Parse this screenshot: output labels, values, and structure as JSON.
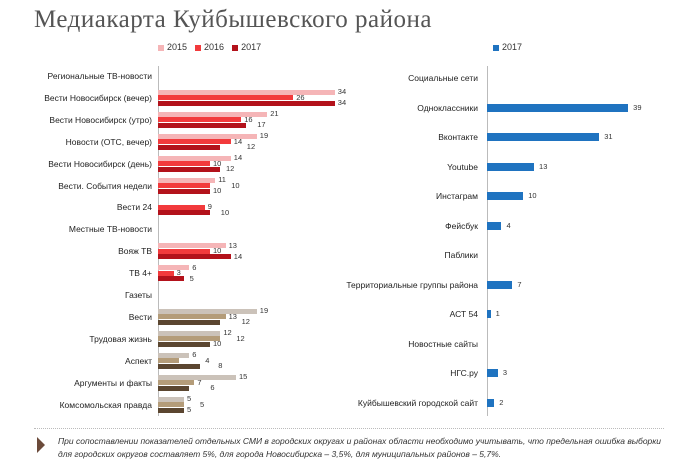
{
  "title": "Медиакарта Куйбышевского района",
  "footnote": "При сопоставлении показателей отдельных СМИ в городских округах и районах области необходимо учитывать, что предельная ошибка выборки для городских округов составляет 5%, для города Новосибирска – 3,5%, для муниципальных районов – 5,7%.",
  "colors": {
    "tv": [
      "#f5b5b7",
      "#f23a3c",
      "#b3121b"
    ],
    "paper": [
      "#cbc2b9",
      "#b49c79",
      "#5b4630"
    ],
    "blue": "#1f73c0"
  },
  "chart_data": [
    {
      "type": "bar",
      "orientation": "horizontal",
      "legend": [
        "2015",
        "2016",
        "2017"
      ],
      "legend_position": "top",
      "rows": [
        {
          "label": "Региональные ТВ-новости",
          "header": true
        },
        {
          "label": "Вести Новосибирск (вечер)",
          "values": [
            34,
            26,
            34
          ],
          "palette": "tv"
        },
        {
          "label": "Вести Новосибирск (утро)",
          "values": [
            21,
            16,
            17
          ],
          "palette": "tv"
        },
        {
          "label": "Новости (ОТС, вечер)",
          "values": [
            19,
            14,
            12
          ],
          "palette": "tv"
        },
        {
          "label": "Вести Новосибирск (день)",
          "values": [
            14,
            10,
            12
          ],
          "palette": "tv"
        },
        {
          "label": "Вести. События недели",
          "values": [
            11,
            10,
            10
          ],
          "palette": "tv"
        },
        {
          "label": "Вести 24",
          "values": [
            null,
            9,
            10
          ],
          "palette": "tv"
        },
        {
          "label": "Местные ТВ-новости",
          "header": true
        },
        {
          "label": "Вояж ТВ",
          "values": [
            13,
            10,
            14
          ],
          "palette": "tv"
        },
        {
          "label": "ТВ 4+",
          "values": [
            6,
            3,
            5
          ],
          "palette": "tv"
        },
        {
          "label": "Газеты",
          "header": true
        },
        {
          "label": "Вести",
          "values": [
            19,
            13,
            12
          ],
          "palette": "paper"
        },
        {
          "label": "Трудовая жизнь",
          "values": [
            12,
            12,
            10
          ],
          "palette": "paper"
        },
        {
          "label": "Аспект",
          "values": [
            6,
            4,
            8
          ],
          "palette": "paper"
        },
        {
          "label": "Аргументы и факты",
          "values": [
            15,
            7,
            6
          ],
          "palette": "paper"
        },
        {
          "label": "Комсомольская правда",
          "values": [
            5,
            5,
            5
          ],
          "palette": "paper"
        }
      ]
    },
    {
      "type": "bar",
      "orientation": "horizontal",
      "legend": [
        "2017"
      ],
      "legend_position": "top",
      "rows": [
        {
          "label": "Социальные сети",
          "header": true
        },
        {
          "label": "Одноклассники",
          "value": 39
        },
        {
          "label": "Вконтакте",
          "value": 31
        },
        {
          "label": "Youtube",
          "value": 13
        },
        {
          "label": "Инстаграм",
          "value": 10
        },
        {
          "label": "Фейсбук",
          "value": 4
        },
        {
          "label": "Паблики",
          "header": true
        },
        {
          "label": "Территориальные группы района",
          "value": 7
        },
        {
          "label": "АСТ 54",
          "value": 1
        },
        {
          "label": "Новостные сайты",
          "header": true
        },
        {
          "label": "НГС.ру",
          "value": 3
        },
        {
          "label": "Куйбышевский городской сайт",
          "value": 2
        }
      ]
    }
  ]
}
